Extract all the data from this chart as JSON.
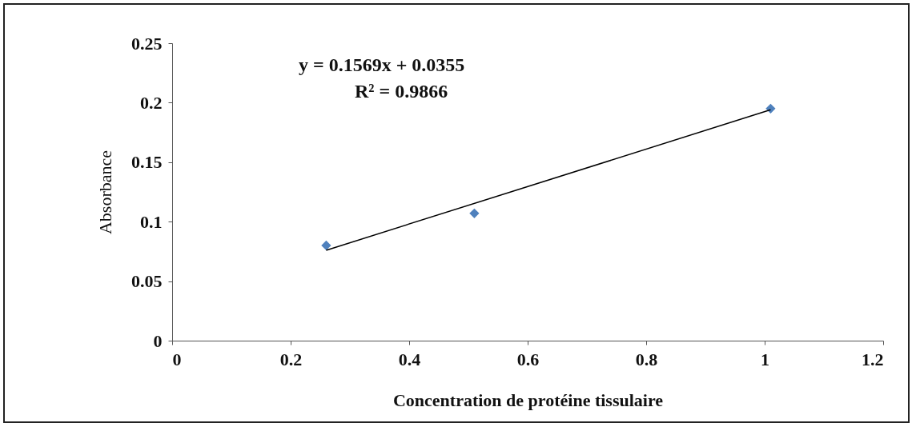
{
  "chart_data": {
    "type": "scatter",
    "xlabel": "Concentration  de protéine tissulaire",
    "ylabel": "Absorbance",
    "xlim": [
      0,
      1.2
    ],
    "xticks": [
      0,
      0.2,
      0.4,
      0.6,
      0.8,
      1,
      1.2
    ],
    "ylim": [
      0,
      0.25
    ],
    "yticks": [
      0,
      0.05,
      0.1,
      0.15,
      0.2,
      0.25
    ],
    "grid": false,
    "marker": "diamond",
    "annotations": [
      "y = 0.1569x + 0.0355",
      "R² = 0.9866"
    ],
    "series": [
      {
        "color": "#4f81bd",
        "x": [
          0.26,
          0.51,
          1.01
        ],
        "values": [
          0.08,
          0.107,
          0.195
        ]
      },
      {
        "type": "line",
        "marker": "none",
        "color": "#000000",
        "x": [
          0.26,
          1.01
        ],
        "values": [
          0.076,
          0.194
        ]
      }
    ]
  }
}
